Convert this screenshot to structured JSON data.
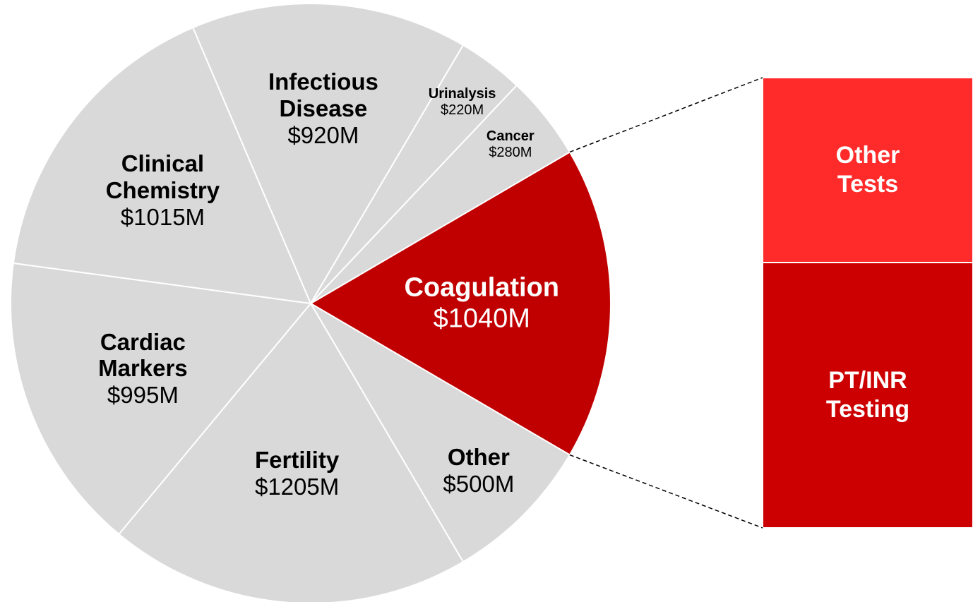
{
  "chart_data": {
    "type": "pie",
    "categories": [
      "Coagulation",
      "Other",
      "Fertility",
      "Cardiac Markers",
      "Clinical Chemistry",
      "Infectious Disease",
      "Urinalysis",
      "Cancer"
    ],
    "values": [
      1040,
      500,
      1205,
      995,
      1015,
      920,
      220,
      280
    ],
    "value_labels": [
      "$1040M",
      "$500M",
      "$1205M",
      "$995M",
      "$1015M",
      "$920M",
      "$220M",
      "$280M"
    ],
    "colors": [
      "#c00000",
      "#d9d9d9",
      "#d9d9d9",
      "#d9d9d9",
      "#d9d9d9",
      "#d9d9d9",
      "#d9d9d9",
      "#d9d9d9"
    ],
    "breakdown": {
      "categories": [
        "Other Tests",
        "PT/INR Testing"
      ],
      "colors": [
        "#ff2a2a",
        "#cc0000"
      ]
    }
  }
}
